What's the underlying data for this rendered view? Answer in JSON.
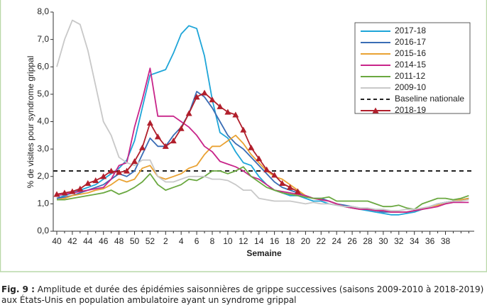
{
  "chart_data": {
    "type": "line",
    "ylabel": "% de visites pour syndrome grippal",
    "xlabel": "Semaine",
    "categories": [
      "40",
      null,
      "42",
      null,
      "44",
      null,
      "46",
      null,
      "48",
      null,
      "50",
      null,
      "52",
      null,
      "2",
      null,
      "4",
      null,
      "6",
      null,
      "8",
      null,
      "10",
      null,
      "12",
      null,
      "14",
      null,
      "16",
      null,
      "18",
      null,
      "20",
      null,
      "22",
      null,
      "24",
      null,
      "26",
      null,
      "28",
      null,
      "30",
      null,
      "32",
      null,
      "34",
      null,
      "36",
      null,
      "38",
      null,
      null,
      null
    ],
    "ylim": [
      0,
      8
    ],
    "yticks": [
      {
        "value": 0,
        "label": "0,0"
      },
      {
        "value": 1,
        "label": "1,0"
      },
      {
        "value": 2,
        "label": "2,0"
      },
      {
        "value": 3,
        "label": "3,0"
      },
      {
        "value": 4,
        "label": "4,0"
      },
      {
        "value": 5,
        "label": "5,0"
      },
      {
        "value": 6,
        "label": "6,0"
      },
      {
        "value": 7,
        "label": "7,0"
      },
      {
        "value": 8,
        "label": "8,0"
      }
    ],
    "baseline": {
      "name": "Baseline nationale",
      "value": 2.2,
      "color": "#222222"
    },
    "series": [
      {
        "name": "2017-18",
        "color": "#1ea5d8",
        "values": [
          1.2,
          1.3,
          1.4,
          1.5,
          1.6,
          1.7,
          1.9,
          2.1,
          2.3,
          2.6,
          3.3,
          4.5,
          5.7,
          5.8,
          5.9,
          6.5,
          7.2,
          7.5,
          7.4,
          6.4,
          4.8,
          3.6,
          3.4,
          2.9,
          2.5,
          2.4,
          2.0,
          1.7,
          1.5,
          1.4,
          1.3,
          1.3,
          1.2,
          1.1,
          1.1,
          1.0,
          0.95,
          0.9,
          0.85,
          0.8,
          0.75,
          0.7,
          0.65,
          0.6,
          0.6,
          0.65,
          0.7,
          0.8,
          0.9,
          1.0,
          1.05,
          1.1,
          1.15,
          1.2
        ]
      },
      {
        "name": "2016-17",
        "color": "#3a6db5",
        "values": [
          1.2,
          1.25,
          1.3,
          1.4,
          1.5,
          1.6,
          1.7,
          1.9,
          2.1,
          2.0,
          2.2,
          2.8,
          3.4,
          3.1,
          3.1,
          3.5,
          3.8,
          4.3,
          5.1,
          4.9,
          4.5,
          4.0,
          3.5,
          3.2,
          3.0,
          2.7,
          2.4,
          2.1,
          1.8,
          1.6,
          1.5,
          1.4,
          1.3,
          1.2,
          1.2,
          1.1,
          1.0,
          0.95,
          0.9,
          0.85,
          0.8,
          0.75,
          0.7,
          0.7,
          0.7,
          0.7,
          0.75,
          0.8,
          0.9,
          1.0,
          1.05,
          1.1,
          1.15,
          1.2
        ]
      },
      {
        "name": "2015-16",
        "color": "#e9a233",
        "values": [
          1.15,
          1.2,
          1.3,
          1.35,
          1.4,
          1.5,
          1.55,
          1.7,
          1.9,
          1.8,
          1.9,
          2.3,
          2.4,
          2.0,
          1.9,
          2.0,
          2.1,
          2.3,
          2.4,
          2.8,
          3.1,
          3.1,
          3.3,
          3.5,
          3.2,
          2.8,
          2.5,
          2.2,
          2.0,
          1.9,
          1.7,
          1.5,
          1.3,
          1.2,
          1.15,
          1.1,
          1.0,
          0.9,
          0.85,
          0.8,
          0.8,
          0.75,
          0.75,
          0.7,
          0.7,
          0.7,
          0.75,
          0.8,
          0.9,
          0.95,
          1.0,
          1.1,
          1.15,
          1.2
        ]
      },
      {
        "name": "2014-15",
        "color": "#c8258a",
        "values": [
          1.3,
          1.35,
          1.4,
          1.45,
          1.5,
          1.55,
          1.6,
          1.9,
          2.4,
          2.5,
          3.8,
          4.8,
          5.95,
          4.2,
          4.2,
          4.2,
          4.0,
          3.8,
          3.5,
          3.1,
          2.9,
          2.55,
          2.45,
          2.35,
          2.2,
          2.0,
          1.9,
          1.7,
          1.5,
          1.45,
          1.4,
          1.35,
          1.3,
          1.2,
          1.15,
          1.1,
          1.0,
          0.9,
          0.85,
          0.8,
          0.8,
          0.75,
          0.75,
          0.7,
          0.7,
          0.7,
          0.75,
          0.8,
          0.85,
          0.9,
          1.0,
          1.05,
          1.05,
          1.05
        ]
      },
      {
        "name": "2011-12",
        "color": "#6aa840",
        "values": [
          1.15,
          1.15,
          1.2,
          1.25,
          1.3,
          1.35,
          1.4,
          1.5,
          1.35,
          1.45,
          1.6,
          1.8,
          2.1,
          1.7,
          1.5,
          1.6,
          1.7,
          1.9,
          1.85,
          2.0,
          2.2,
          2.2,
          2.1,
          2.2,
          2.35,
          2.0,
          1.8,
          1.6,
          1.5,
          1.4,
          1.35,
          1.3,
          1.25,
          1.2,
          1.2,
          1.25,
          1.1,
          1.1,
          1.1,
          1.1,
          1.1,
          1.0,
          0.9,
          0.9,
          0.95,
          0.85,
          0.8,
          1.0,
          1.1,
          1.2,
          1.2,
          1.15,
          1.2,
          1.3
        ]
      },
      {
        "name": "2009-10",
        "color": "#c8c8c8",
        "values": [
          6.0,
          7.0,
          7.7,
          7.55,
          6.6,
          5.3,
          4.0,
          3.5,
          2.7,
          2.5,
          2.4,
          2.6,
          2.6,
          2.0,
          1.8,
          1.8,
          1.9,
          2.0,
          2.0,
          2.0,
          1.9,
          1.9,
          1.85,
          1.7,
          1.5,
          1.5,
          1.2,
          1.15,
          1.1,
          1.1,
          1.1,
          1.05,
          1.0,
          1.05,
          1.0,
          1.0,
          0.95,
          0.9,
          0.9,
          0.85,
          0.85,
          0.8,
          0.8,
          0.75,
          0.75,
          0.8,
          0.8,
          0.85,
          0.9,
          1.0,
          1.05,
          1.1,
          1.1,
          1.15
        ]
      },
      {
        "name": "2018-19",
        "color": "#b11f2c",
        "marker": "triangle",
        "values": [
          1.35,
          1.4,
          1.45,
          1.55,
          1.75,
          1.85,
          2.0,
          2.2,
          2.15,
          2.2,
          2.55,
          3.05,
          3.95,
          3.45,
          3.1,
          3.3,
          3.75,
          4.3,
          4.9,
          5.05,
          4.8,
          4.55,
          4.35,
          4.25,
          3.7,
          3.05,
          2.65,
          2.25,
          2.05,
          1.75,
          1.6,
          1.45,
          null,
          null,
          null,
          null,
          null,
          null,
          null,
          null,
          null,
          null,
          null,
          null,
          null,
          null,
          null,
          null,
          null,
          null,
          null,
          null,
          null,
          null
        ]
      }
    ]
  },
  "caption": {
    "label": "Fig. 9 :",
    "text": "Amplitude et durée des épidémies saisonnières de grippe successives (saisons 2009-2010 à 2018-2019) aux États-Unis en population ambulatoire ayant un syndrome grippal"
  }
}
